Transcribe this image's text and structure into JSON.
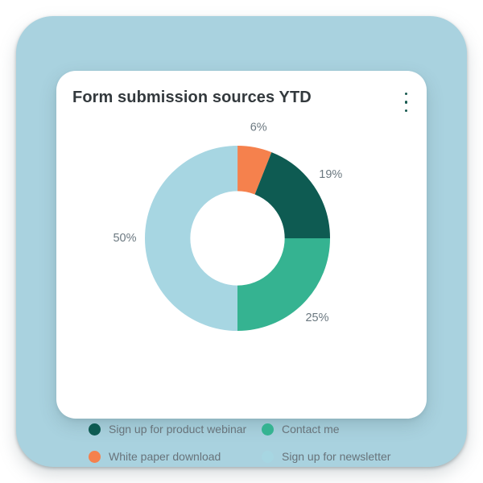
{
  "card": {
    "title": "Form submission sources YTD",
    "menu_icon": "kebab-vertical"
  },
  "colors": {
    "page_background": "#ffffff",
    "panel_background": "#a9d2df",
    "card_background": "#ffffff",
    "title_text": "#33393d",
    "label_text": "#6b7880",
    "menu_icon": "#17594f"
  },
  "chart_data": {
    "type": "pie",
    "subtype": "donut",
    "title": "Form submission sources YTD",
    "unit": "%",
    "start_angle": "top",
    "direction": "clockwise",
    "donut_hole_ratio": 0.51,
    "data_labels": "outside",
    "legend_position": "bottom",
    "segments": [
      {
        "label": "White paper download",
        "value": 6,
        "display": "6%",
        "color": "#f5814d"
      },
      {
        "label": "Sign up for product webinar",
        "value": 19,
        "display": "19%",
        "color": "#0e5b52"
      },
      {
        "label": "Contact me",
        "value": 25,
        "display": "25%",
        "color": "#35b391"
      },
      {
        "label": "Sign up for newsletter",
        "value": 50,
        "display": "50%",
        "color": "#a7d6e2"
      }
    ]
  },
  "legend": {
    "items": [
      {
        "label": "Sign up for product webinar",
        "color": "#0e5b52"
      },
      {
        "label": "Contact me",
        "color": "#35b391"
      },
      {
        "label": "White paper download",
        "color": "#f5814d"
      },
      {
        "label": "Sign up for newsletter",
        "color": "#a7d6e2"
      }
    ]
  }
}
